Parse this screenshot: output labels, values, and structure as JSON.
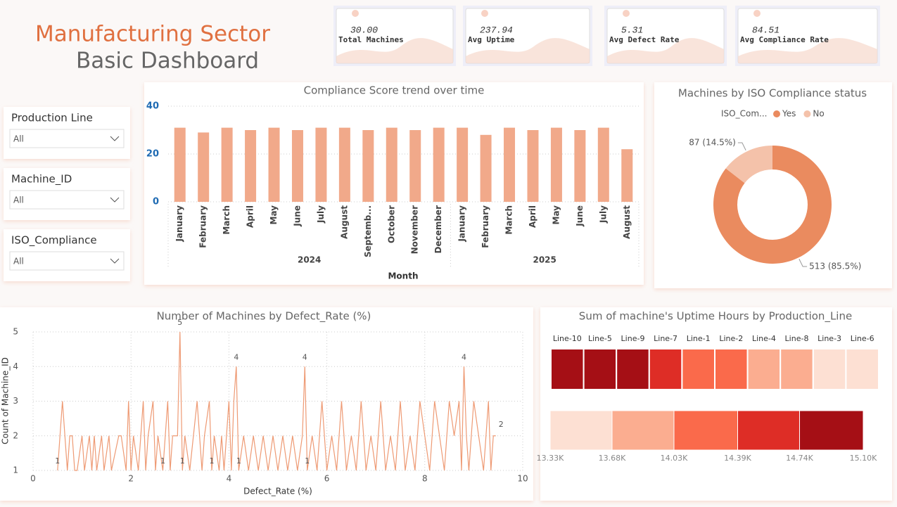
{
  "header": {
    "title": "Manufacturing Sector",
    "subtitle": "Basic Dashboard"
  },
  "kpis": [
    {
      "value": "30.00",
      "label": "Total Machines"
    },
    {
      "value": "237.94",
      "label": "Avg Uptime"
    },
    {
      "value": "5.31",
      "label": "Avg Defect Rate"
    },
    {
      "value": "84.51",
      "label": "Avg Compliance Rate"
    }
  ],
  "filters": [
    {
      "label": "Production Line",
      "value": "All"
    },
    {
      "label": "Machine_ID",
      "value": "All"
    },
    {
      "label": "ISO_Compliance",
      "value": "All"
    }
  ],
  "chart_data": [
    {
      "type": "bar",
      "title": "Compliance Score trend over time",
      "x_title": "Month",
      "color": "#f1a98a",
      "groups": [
        {
          "name": "2024",
          "categories": [
            "January",
            "February",
            "March",
            "April",
            "May",
            "June",
            "July",
            "August",
            "Septemb...",
            "October",
            "November",
            "December"
          ],
          "values": [
            31,
            29,
            31,
            30,
            31,
            30,
            31,
            31,
            30,
            31,
            30,
            31
          ]
        },
        {
          "name": "2025",
          "categories": [
            "January",
            "February",
            "March",
            "April",
            "May",
            "June",
            "July",
            "August"
          ],
          "values": [
            31,
            28,
            31,
            30,
            31,
            30,
            31,
            22
          ]
        }
      ],
      "ylim": [
        0,
        40
      ],
      "yticks": [
        0,
        20,
        40
      ],
      "grid": true
    },
    {
      "type": "pie",
      "title": "Machines by ISO Compliance status",
      "legend_title": "ISO_Com...",
      "donut": true,
      "categories": [
        "Yes",
        "No"
      ],
      "values": [
        513,
        87
      ],
      "value_labels": [
        "513 (85.5%)",
        "87 (14.5%)"
      ],
      "colors": [
        "#ea8b5f",
        "#f4c2aa"
      ]
    },
    {
      "type": "line",
      "title": "Number of Machines by Defect_Rate (%)",
      "x_title": "Defect_Rate (%)",
      "y_title": "Count of Machine_ID",
      "color": "#ee9a74",
      "x": [
        0.5,
        0.55,
        0.6,
        0.65,
        0.7,
        0.75,
        0.8,
        0.85,
        0.9,
        1.0,
        1.05,
        1.15,
        1.2,
        1.25,
        1.3,
        1.4,
        1.45,
        1.55,
        1.6,
        1.75,
        1.8,
        1.9,
        1.95,
        2.0,
        2.05,
        2.15,
        2.25,
        2.3,
        2.35,
        2.45,
        2.5,
        2.55,
        2.65,
        2.75,
        2.8,
        2.85,
        2.95,
        3.0,
        3.05,
        3.1,
        3.2,
        3.35,
        3.4,
        3.45,
        3.5,
        3.6,
        3.65,
        3.7,
        3.8,
        3.85,
        3.9,
        4.0,
        4.05,
        4.1,
        4.15,
        4.2,
        4.3,
        4.4,
        4.5,
        4.6,
        4.7,
        4.8,
        4.9,
        5.0,
        5.1,
        5.2,
        5.3,
        5.4,
        5.5,
        5.55,
        5.6,
        5.7,
        5.8,
        5.9,
        6.0,
        6.1,
        6.2,
        6.3,
        6.4,
        6.5,
        6.6,
        6.7,
        6.8,
        6.9,
        7.0,
        7.1,
        7.2,
        7.3,
        7.4,
        7.5,
        7.6,
        7.7,
        7.8,
        7.9,
        8.0,
        8.1,
        8.2,
        8.3,
        8.4,
        8.5,
        8.6,
        8.7,
        8.75,
        8.8,
        8.85,
        8.9,
        9.0,
        9.1,
        9.2,
        9.3,
        9.35,
        9.4,
        9.45
      ],
      "values": [
        1,
        2,
        3,
        2,
        1,
        2,
        2,
        1,
        1,
        2,
        1,
        2,
        1,
        2,
        1,
        2,
        1,
        2,
        1,
        2,
        2,
        1,
        3,
        1,
        2,
        1,
        3,
        1,
        2,
        3,
        1,
        2,
        1,
        3,
        1,
        2,
        2,
        5,
        1,
        2,
        1,
        3,
        2,
        1,
        2,
        3,
        1,
        2,
        1,
        2,
        1,
        3,
        1,
        3,
        4,
        1,
        2,
        1,
        2,
        1,
        2,
        1,
        2,
        1,
        2,
        1,
        2,
        1,
        2,
        4,
        1,
        2,
        1,
        3,
        1,
        2,
        1,
        3,
        1,
        2,
        1,
        3,
        1,
        2,
        1,
        3,
        1,
        2,
        1,
        3,
        1,
        2,
        1,
        3,
        2,
        1,
        3,
        2,
        1,
        3,
        2,
        3,
        1,
        4,
        2,
        1,
        3,
        2,
        1,
        3,
        1,
        2,
        2
      ],
      "value_labels": [
        "1",
        null,
        null,
        null,
        null,
        null,
        null,
        null,
        null,
        null,
        null,
        null,
        null,
        null,
        null,
        null,
        null,
        null,
        null,
        null,
        null,
        null,
        null,
        null,
        null,
        null,
        null,
        null,
        null,
        null,
        null,
        null,
        "1",
        null,
        null,
        null,
        null,
        "5",
        "1",
        null,
        null,
        null,
        null,
        null,
        null,
        null,
        "1",
        null,
        null,
        null,
        null,
        null,
        null,
        null,
        "4",
        "1",
        null,
        null,
        null,
        null,
        null,
        null,
        null,
        null,
        null,
        null,
        null,
        null,
        null,
        "4",
        "1",
        null,
        null,
        null,
        null,
        null,
        null,
        null,
        null,
        null,
        null,
        null,
        null,
        null,
        null,
        null,
        null,
        null,
        null,
        null,
        null,
        null,
        null,
        null,
        null,
        null,
        null,
        null,
        null,
        null,
        null,
        null,
        null,
        "4",
        null,
        null,
        null,
        null,
        null,
        null,
        null,
        null,
        "2"
      ],
      "xlim": [
        0,
        10
      ],
      "xticks": [
        0,
        2,
        4,
        6,
        8,
        10
      ],
      "ylim": [
        1,
        5
      ],
      "yticks": [
        1,
        2,
        3,
        4,
        5
      ],
      "grid": true
    },
    {
      "type": "heatmap",
      "title": "Sum of machine's Uptime Hours by Production_Line",
      "categories": [
        "Line-10",
        "Line-5",
        "Line-9",
        "Line-7",
        "Line-1",
        "Line-2",
        "Line-4",
        "Line-8",
        "Line-3",
        "Line-6"
      ],
      "values": [
        15050,
        14950,
        14900,
        14550,
        14200,
        14150,
        13850,
        13800,
        13450,
        13400
      ],
      "colors": [
        "#fde0d3",
        "#fbad90",
        "#fa6a4b",
        "#de2d26",
        "#a50f15"
      ],
      "color_ticks": [
        {
          "value": 13330,
          "label": "13.33K"
        },
        {
          "value": 13680,
          "label": "13.68K"
        },
        {
          "value": 14030,
          "label": "14.03K"
        },
        {
          "value": 14390,
          "label": "14.39K"
        },
        {
          "value": 14740,
          "label": "14.74K"
        },
        {
          "value": 15100,
          "label": "15.10K"
        }
      ]
    }
  ]
}
